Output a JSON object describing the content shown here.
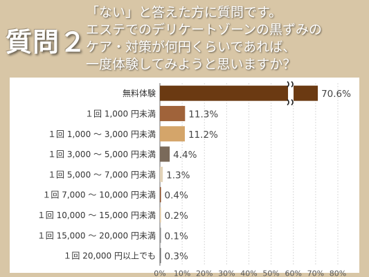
{
  "header": {
    "question_label": "質問２",
    "question_text": "「ない」と答えた方に質問です。\nエステでのデリケートゾーンの黒ずみの\nケア・対策が何円くらいであれば、\n一度体験してみようと思いますか？"
  },
  "chart_data": {
    "type": "bar",
    "orientation": "horizontal",
    "title": "",
    "xlabel": "",
    "ylabel": "",
    "xlim": [
      0,
      80
    ],
    "x_ticks": [
      "0%",
      "10%",
      "20%",
      "30%",
      "40%",
      "50%",
      "60%",
      "70%",
      "80%"
    ],
    "grid": true,
    "axis_break_on_first_bar": true,
    "categories": [
      "無料体験",
      "１回 1,000 円未満",
      "１回 1,000 ～ 3,000 円未満",
      "１回 3,000 ～ 5,000 円未満",
      "１回 5,000 ～ 7,000 円未満",
      "１回 7,000 ～ 10,000 円未満",
      "１回 10,000 ～ 15,000 円未満",
      "１回 15,000 ～ 20,000 円未満",
      "１回 20,000 円以上でも"
    ],
    "values": [
      70.6,
      11.3,
      11.2,
      4.4,
      1.3,
      0.4,
      0.2,
      0.1,
      0.3
    ],
    "value_labels": [
      "70.6%",
      "11.3%",
      "11.2%",
      "4.4%",
      "1.3%",
      "0.4%",
      "0.2%",
      "0.1%",
      "0.3%"
    ],
    "colors": [
      "#6b3a12",
      "#a0633a",
      "#d4a56a",
      "#7a6a5a",
      "#e3d3b8",
      "#8a4a22",
      "#e2c8a0",
      "#8a8a8a",
      "#6a6a6a"
    ]
  }
}
